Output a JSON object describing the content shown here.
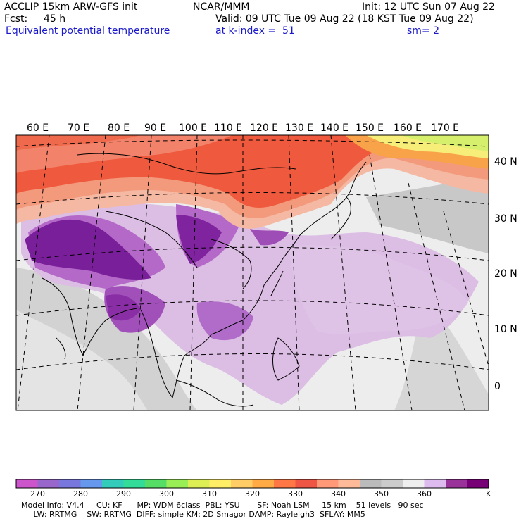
{
  "header": {
    "model": "ACCLIP 15km ARW-GFS init",
    "org": "NCAR/MMM",
    "init": "Init: 12 UTC Sun 07 Aug 22",
    "fcst_label": "Fcst:",
    "fcst_value": "45 h",
    "valid": "Valid: 09 UTC Tue 09 Aug 22 (18 KST Tue 09 Aug 22)",
    "field": "Equivalent potential temperature",
    "level": "at k-index =  51",
    "smooth": "sm= 2"
  },
  "map": {
    "lon_labels": [
      "60 E",
      "70 E",
      "80 E",
      "90 E",
      "100 E",
      "110 E",
      "120 E",
      "130 E",
      "140 E",
      "150 E",
      "160 E",
      "170 E"
    ],
    "lat_labels": [
      "40 N",
      "30 N",
      "20 N",
      "10 N",
      "0"
    ],
    "colors": {
      "deep_purple": "#7a1f9a",
      "mid_purple": "#b05ec4",
      "light_purple": "#dcbde4",
      "light_gray": "#ededed",
      "mid_gray": "#cfcfcf",
      "dark_gray": "#b4b4b4",
      "salmon": "#f7b39a",
      "orange_red": "#f26a4c",
      "red": "#ef4a3a",
      "orange": "#f8a94a",
      "yellow": "#f7ee7a",
      "lime": "#d6f06e"
    }
  },
  "colorbar": {
    "unit": "K",
    "ticks": [
      "270",
      "280",
      "290",
      "300",
      "310",
      "320",
      "330",
      "340",
      "350",
      "360"
    ],
    "colors": [
      "#cc55cc",
      "#9966cc",
      "#7777dd",
      "#6699ee",
      "#33ccbb",
      "#33dd99",
      "#55dd66",
      "#99ee55",
      "#ddee55",
      "#ffee66",
      "#ffcc66",
      "#ffaa44",
      "#ff7744",
      "#ee5544",
      "#ff9977",
      "#ffbb99",
      "#bbbbbb",
      "#cccccc",
      "#eeeeee",
      "#ddbbee",
      "#993399",
      "#770077"
    ]
  },
  "footer": {
    "line1": "Model Info: V4.4     CU: KF      MP: WDM 6class  PBL: YSU       SF: Noah LSM     15 km    51 levels   90 sec",
    "line2": "     LW: RRTMG    SW: RRTMG  DIFF: simple KM: 2D Smagor DAMP: Rayleigh3  SFLAY: MM5"
  }
}
